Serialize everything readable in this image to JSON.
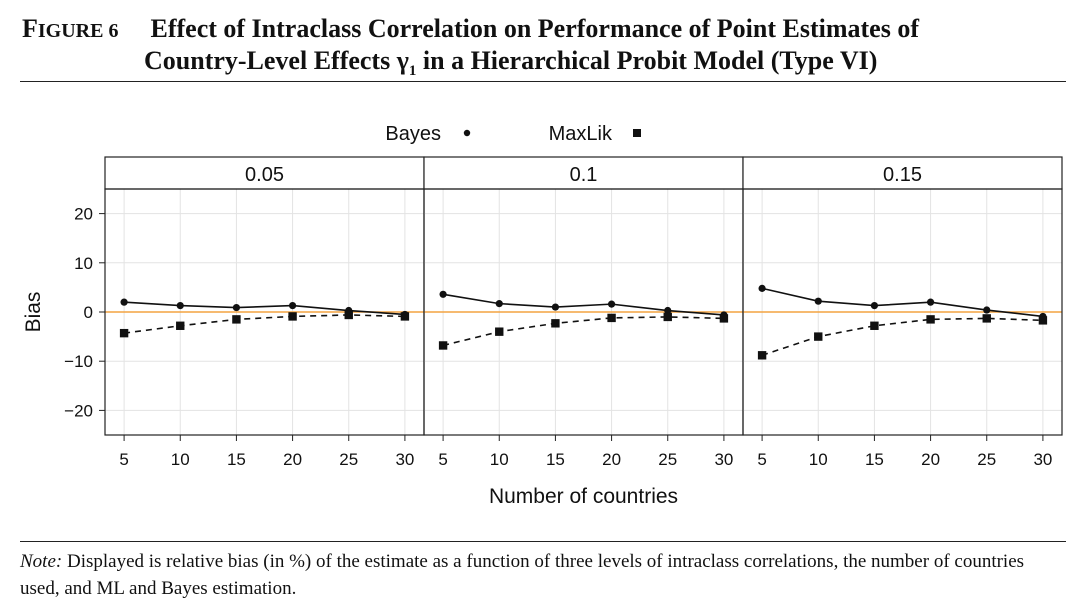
{
  "figure": {
    "label": "Figure 6",
    "title_line1": "Effect of Intraclass Correlation on Performance of Point Estimates of",
    "title_line2_pre": "Country-Level Effects ",
    "title_line2_symbol": "γ",
    "title_line2_sub": "1",
    "title_line2_post": " in a Hierarchical Probit Model (Type VI)",
    "note_label": "Note:",
    "note_text": " Displayed is relative bias (in %) of the estimate as a function of three levels of intraclass correlations, the number of countries used, and ML and Bayes estimation."
  },
  "chart_data": {
    "type": "line",
    "xlabel": "Number of countries",
    "ylabel": "Bias",
    "ylim": [
      -25,
      25
    ],
    "yticks": [
      -20,
      -10,
      0,
      10,
      20
    ],
    "ytick_labels": [
      "−20",
      "−10",
      "0",
      "10",
      "20"
    ],
    "x": [
      5,
      10,
      15,
      20,
      25,
      30
    ],
    "xlim": [
      3.3,
      31.7
    ],
    "legend": {
      "position": "top",
      "entries": [
        {
          "name": "Bayes",
          "marker": "circle",
          "line": "solid"
        },
        {
          "name": "MaxLik",
          "marker": "square",
          "line": "dashed"
        }
      ]
    },
    "reference_line": {
      "y": 0,
      "color": "#f4a340"
    },
    "panels": [
      {
        "strip": "0.05",
        "series": [
          {
            "name": "Bayes",
            "values": [
              2.0,
              1.3,
              0.9,
              1.3,
              0.3,
              -0.5
            ]
          },
          {
            "name": "MaxLik",
            "values": [
              -4.3,
              -2.8,
              -1.5,
              -0.9,
              -0.6,
              -0.9
            ]
          }
        ]
      },
      {
        "strip": "0.1",
        "series": [
          {
            "name": "Bayes",
            "values": [
              3.6,
              1.7,
              1.0,
              1.6,
              0.3,
              -0.6
            ]
          },
          {
            "name": "MaxLik",
            "values": [
              -6.8,
              -4.0,
              -2.3,
              -1.2,
              -1.0,
              -1.3
            ]
          }
        ]
      },
      {
        "strip": "0.15",
        "series": [
          {
            "name": "Bayes",
            "values": [
              4.8,
              2.2,
              1.3,
              2.0,
              0.4,
              -0.9
            ]
          },
          {
            "name": "MaxLik",
            "values": [
              -8.8,
              -5.0,
              -2.8,
              -1.5,
              -1.3,
              -1.7
            ]
          }
        ]
      }
    ]
  }
}
